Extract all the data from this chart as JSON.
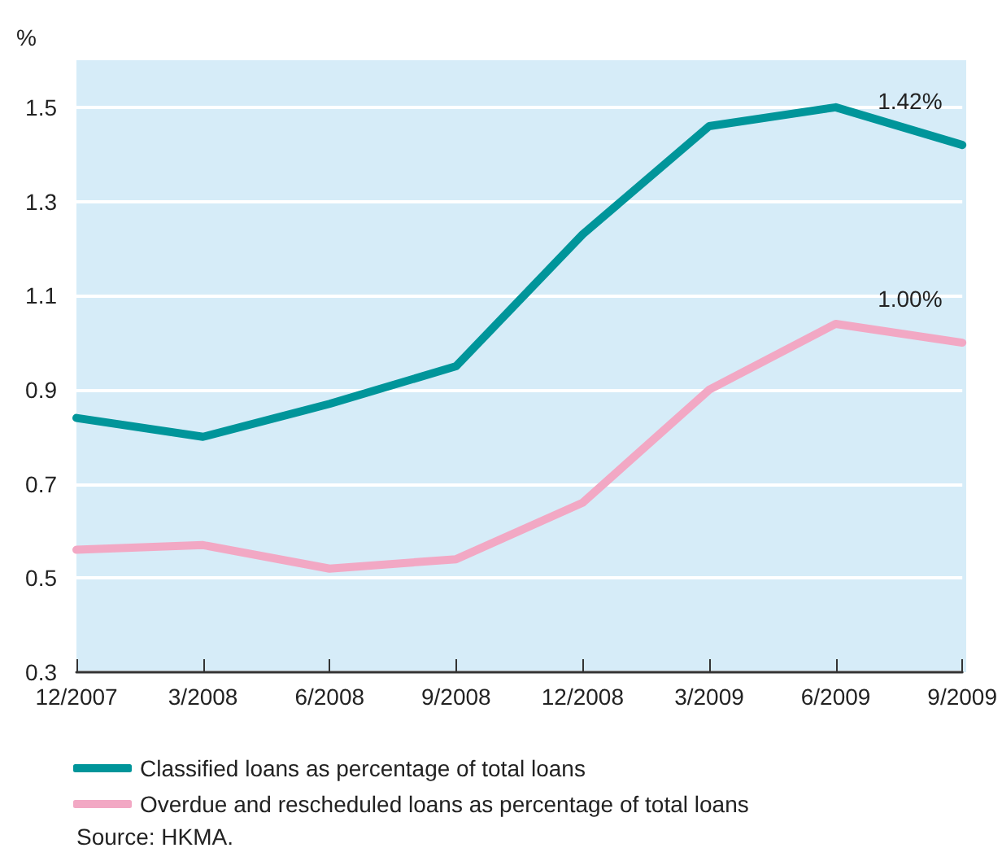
{
  "chart_data": {
    "type": "line",
    "ylabel": "%",
    "categories": [
      "12/2007",
      "3/2008",
      "6/2008",
      "9/2008",
      "12/2008",
      "3/2009",
      "6/2009",
      "9/2009"
    ],
    "series": [
      {
        "name": "Classified loans as percentage of total loans",
        "color": "#00959a",
        "values": [
          0.84,
          0.8,
          0.87,
          0.95,
          1.23,
          1.46,
          1.5,
          1.42
        ]
      },
      {
        "name": "Overdue and rescheduled loans as percentage of total loans",
        "color": "#f2a8c4",
        "values": [
          0.56,
          0.57,
          0.52,
          0.54,
          0.66,
          0.9,
          1.04,
          1.0
        ]
      }
    ],
    "ylim": [
      0.3,
      1.6
    ],
    "yticks": [
      0.3,
      0.5,
      0.7,
      0.9,
      1.1,
      1.3,
      1.5
    ],
    "grid": "y",
    "legend": "bottom",
    "marker": "none",
    "line_style": "solid",
    "annotations": [
      {
        "text": "1.42%",
        "x": "9/2009",
        "y": 1.42
      },
      {
        "text": "1.00%",
        "x": "9/2009",
        "y": 1.0
      },
      "Source: HKMA."
    ]
  }
}
